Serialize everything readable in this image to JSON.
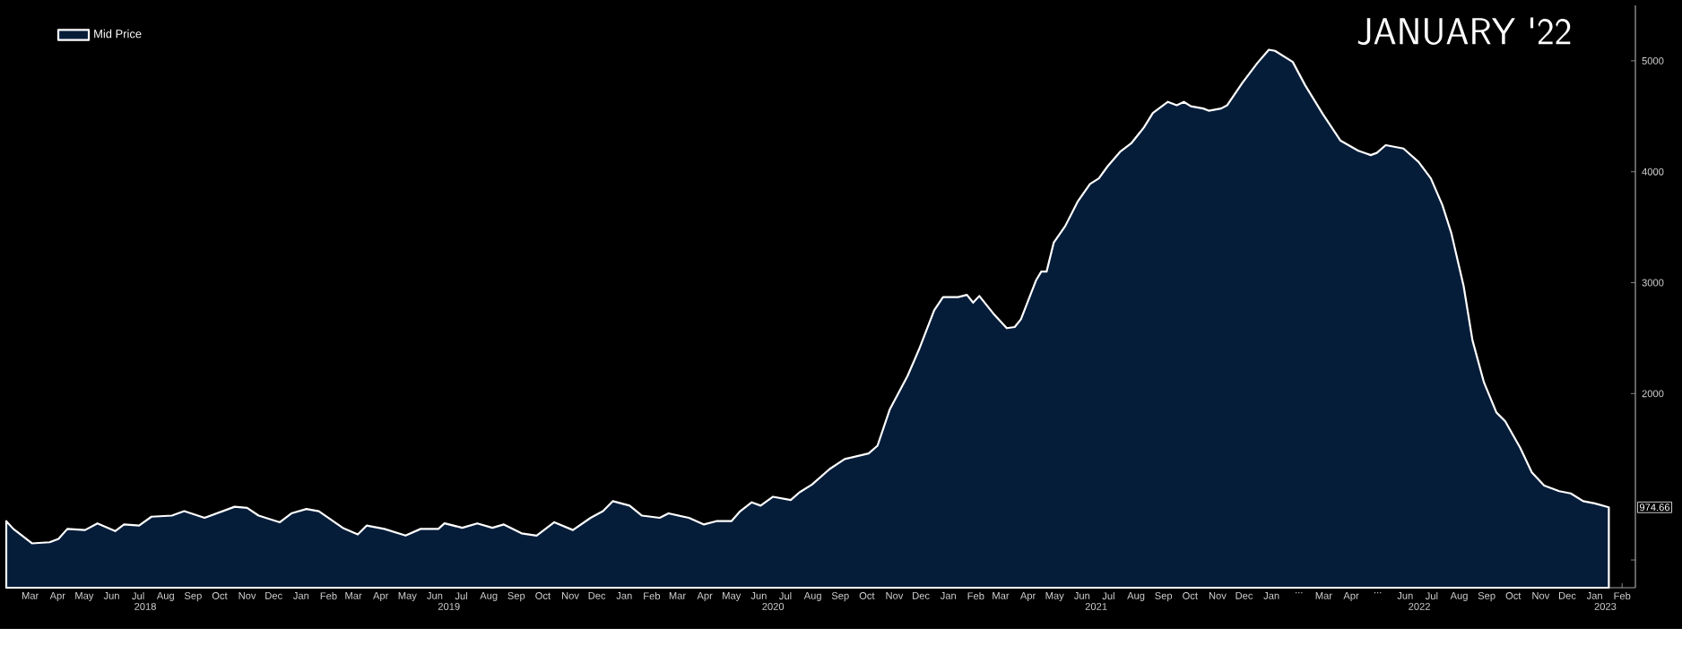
{
  "chart_data": {
    "type": "area",
    "annotations": [
      "JANUARY '22",
      "974.66"
    ],
    "legend": "top left",
    "xlim": [
      "2018-02-15",
      "2023-03-02"
    ],
    "ylim": [
      250,
      5500
    ],
    "yticks": [
      {
        "value": 500,
        "label": null
      },
      2000,
      3000,
      4000,
      5000
    ],
    "xticks": [
      {
        "value": "2018-03-15",
        "label": "Mar"
      },
      {
        "value": "2018-04-15",
        "label": "Apr"
      },
      {
        "value": "2018-05-15",
        "label": "May"
      },
      {
        "value": "2018-06-15",
        "label": "Jun"
      },
      {
        "value": "2018-07-15",
        "label": "Jul"
      },
      {
        "value": "2018-08-15",
        "label": "Aug"
      },
      {
        "value": "2018-09-15",
        "label": "Sep"
      },
      {
        "value": "2018-10-15",
        "label": "Oct"
      },
      {
        "value": "2018-11-15",
        "label": "Nov"
      },
      {
        "value": "2018-12-15",
        "label": "Dec"
      },
      {
        "value": "2019-01-15",
        "label": "Jan"
      },
      {
        "value": "2019-02-15",
        "label": "Feb"
      },
      {
        "value": "2019-03-15",
        "label": "Mar"
      },
      {
        "value": "2019-04-15",
        "label": "Apr"
      },
      {
        "value": "2019-05-15",
        "label": "May"
      },
      {
        "value": "2019-06-15",
        "label": "Jun"
      },
      {
        "value": "2019-07-15",
        "label": "Jul"
      },
      {
        "value": "2019-08-15",
        "label": "Aug"
      },
      {
        "value": "2019-09-15",
        "label": "Sep"
      },
      {
        "value": "2019-10-15",
        "label": "Oct"
      },
      {
        "value": "2019-11-15",
        "label": "Nov"
      },
      {
        "value": "2019-12-15",
        "label": "Dec"
      },
      {
        "value": "2020-01-15",
        "label": "Jan"
      },
      {
        "value": "2020-02-15",
        "label": "Feb"
      },
      {
        "value": "2020-03-15",
        "label": "Mar"
      },
      {
        "value": "2020-04-15",
        "label": "Apr"
      },
      {
        "value": "2020-05-15",
        "label": "May"
      },
      {
        "value": "2020-06-15",
        "label": "Jun"
      },
      {
        "value": "2020-07-15",
        "label": "Jul"
      },
      {
        "value": "2020-08-15",
        "label": "Aug"
      },
      {
        "value": "2020-09-15",
        "label": "Sep"
      },
      {
        "value": "2020-10-15",
        "label": "Oct"
      },
      {
        "value": "2020-11-15",
        "label": "Nov"
      },
      {
        "value": "2020-12-15",
        "label": "Dec"
      },
      {
        "value": "2021-01-15",
        "label": "Jan"
      },
      {
        "value": "2021-02-15",
        "label": "Feb"
      },
      {
        "value": "2021-03-15",
        "label": "Mar"
      },
      {
        "value": "2021-04-15",
        "label": "Apr"
      },
      {
        "value": "2021-05-15",
        "label": "May"
      },
      {
        "value": "2021-06-15",
        "label": "Jun"
      },
      {
        "value": "2021-07-15",
        "label": "Jul"
      },
      {
        "value": "2021-08-15",
        "label": "Aug"
      },
      {
        "value": "2021-09-15",
        "label": "Sep"
      },
      {
        "value": "2021-10-15",
        "label": "Oct"
      },
      {
        "value": "2021-11-15",
        "label": "Nov"
      },
      {
        "value": "2021-12-15",
        "label": "Dec"
      },
      {
        "value": "2022-01-15",
        "label": "Jan"
      },
      {
        "value": "2022-02-15",
        "label": "..."
      },
      {
        "value": "2022-03-15",
        "label": "Mar"
      },
      {
        "value": "2022-04-15",
        "label": "Apr"
      },
      {
        "value": "2022-05-15",
        "label": "..."
      },
      {
        "value": "2022-06-15",
        "label": "Jun"
      },
      {
        "value": "2022-07-15",
        "label": "Jul"
      },
      {
        "value": "2022-08-15",
        "label": "Aug"
      },
      {
        "value": "2022-09-15",
        "label": "Sep"
      },
      {
        "value": "2022-10-15",
        "label": "Oct"
      },
      {
        "value": "2022-11-15",
        "label": "Nov"
      },
      {
        "value": "2022-12-15",
        "label": "Dec"
      },
      {
        "value": "2023-01-15",
        "label": "Jan"
      },
      {
        "value": "2023-02-15",
        "label": "Feb"
      }
    ],
    "x2lim": [
      "2018-02-15",
      "2023-03-02"
    ],
    "x2ticks": [
      {
        "value": "2018-07-23",
        "label": "2018"
      },
      {
        "value": "2019-07-01",
        "label": "2019"
      },
      {
        "value": "2020-07-01",
        "label": "2020"
      },
      {
        "value": "2021-07-01",
        "label": "2021"
      },
      {
        "value": "2022-07-01",
        "label": "2022"
      },
      {
        "value": "2023-01-27",
        "label": "2023"
      }
    ],
    "series": [
      {
        "name": "Mid Price",
        "color": "#ffffff",
        "x": [
          "2018-02-16",
          "2018-02-24",
          "2018-03-17",
          "2018-04-06",
          "2018-04-16",
          "2018-04-26",
          "2018-05-16",
          "2018-05-30",
          "2018-06-19",
          "2018-06-29",
          "2018-07-16",
          "2018-07-30",
          "2018-08-22",
          "2018-09-05",
          "2018-09-28",
          "2018-11-01",
          "2018-11-15",
          "2018-11-28",
          "2018-12-22",
          "2019-01-04",
          "2019-01-21",
          "2019-02-04",
          "2019-03-03",
          "2019-03-20",
          "2019-03-30",
          "2019-04-19",
          "2019-05-13",
          "2019-05-30",
          "2019-06-19",
          "2019-06-26",
          "2019-07-16",
          "2019-08-02",
          "2019-08-19",
          "2019-09-01",
          "2019-09-21",
          "2019-10-08",
          "2019-10-28",
          "2019-11-18",
          "2019-12-08",
          "2019-12-22",
          "2020-01-02",
          "2020-01-21",
          "2020-02-04",
          "2020-02-24",
          "2020-03-05",
          "2020-03-28",
          "2020-04-14",
          "2020-04-28",
          "2020-05-15",
          "2020-05-25",
          "2020-06-07",
          "2020-06-17",
          "2020-07-01",
          "2020-07-21",
          "2020-07-31",
          "2020-08-14",
          "2020-09-03",
          "2020-09-20",
          "2020-10-17",
          "2020-10-27",
          "2020-11-10",
          "2020-11-30",
          "2020-12-13",
          "2020-12-30",
          "2021-01-09",
          "2021-01-26",
          "2021-02-05",
          "2021-02-12",
          "2021-02-19",
          "2021-03-07",
          "2021-03-22",
          "2021-03-31",
          "2021-04-07",
          "2021-04-24",
          "2021-04-30",
          "2021-05-06",
          "2021-05-14",
          "2021-05-27",
          "2021-06-10",
          "2021-06-24",
          "2021-07-04",
          "2021-07-14",
          "2021-07-28",
          "2021-08-10",
          "2021-08-24",
          "2021-09-03",
          "2021-09-20",
          "2021-09-30",
          "2021-10-08",
          "2021-10-16",
          "2021-10-30",
          "2021-11-05",
          "2021-11-19",
          "2021-11-26",
          "2021-12-13",
          "2021-12-30",
          "2022-01-12",
          "2022-01-19",
          "2022-02-08",
          "2022-02-22",
          "2022-03-14",
          "2022-04-03",
          "2022-04-23",
          "2022-05-07",
          "2022-05-14",
          "2022-05-24",
          "2022-06-13",
          "2022-06-30",
          "2022-07-14",
          "2022-07-27",
          "2022-08-06",
          "2022-08-20",
          "2022-08-30",
          "2022-09-12",
          "2022-09-26",
          "2022-10-06",
          "2022-10-23",
          "2022-11-05",
          "2022-11-19",
          "2022-12-06",
          "2022-12-19",
          "2023-01-02",
          "2023-01-15",
          "2023-01-31"
        ],
        "values": [
          850,
          780,
          650,
          660,
          690,
          780,
          770,
          830,
          760,
          820,
          810,
          890,
          900,
          940,
          880,
          980,
          970,
          900,
          840,
          920,
          960,
          940,
          790,
          730,
          810,
          780,
          720,
          780,
          780,
          830,
          790,
          830,
          790,
          820,
          740,
          720,
          840,
          770,
          880,
          940,
          1030,
          990,
          900,
          880,
          920,
          880,
          820,
          850,
          850,
          940,
          1020,
          990,
          1070,
          1040,
          1110,
          1180,
          1320,
          1410,
          1460,
          1530,
          1860,
          2160,
          2400,
          2750,
          2870,
          2870,
          2890,
          2820,
          2880,
          2720,
          2590,
          2600,
          2670,
          3020,
          3100,
          3100,
          3360,
          3510,
          3730,
          3890,
          3940,
          4050,
          4180,
          4260,
          4400,
          4530,
          4630,
          4600,
          4630,
          4590,
          4570,
          4550,
          4570,
          4600,
          4800,
          4980,
          5100,
          5090,
          4990,
          4780,
          4520,
          4280,
          4190,
          4150,
          4170,
          4240,
          4210,
          4090,
          3940,
          3700,
          3450,
          2970,
          2480,
          2100,
          1830,
          1750,
          1510,
          1290,
          1170,
          1120,
          1100,
          1030,
          1010,
          974.66
        ]
      }
    ]
  }
}
